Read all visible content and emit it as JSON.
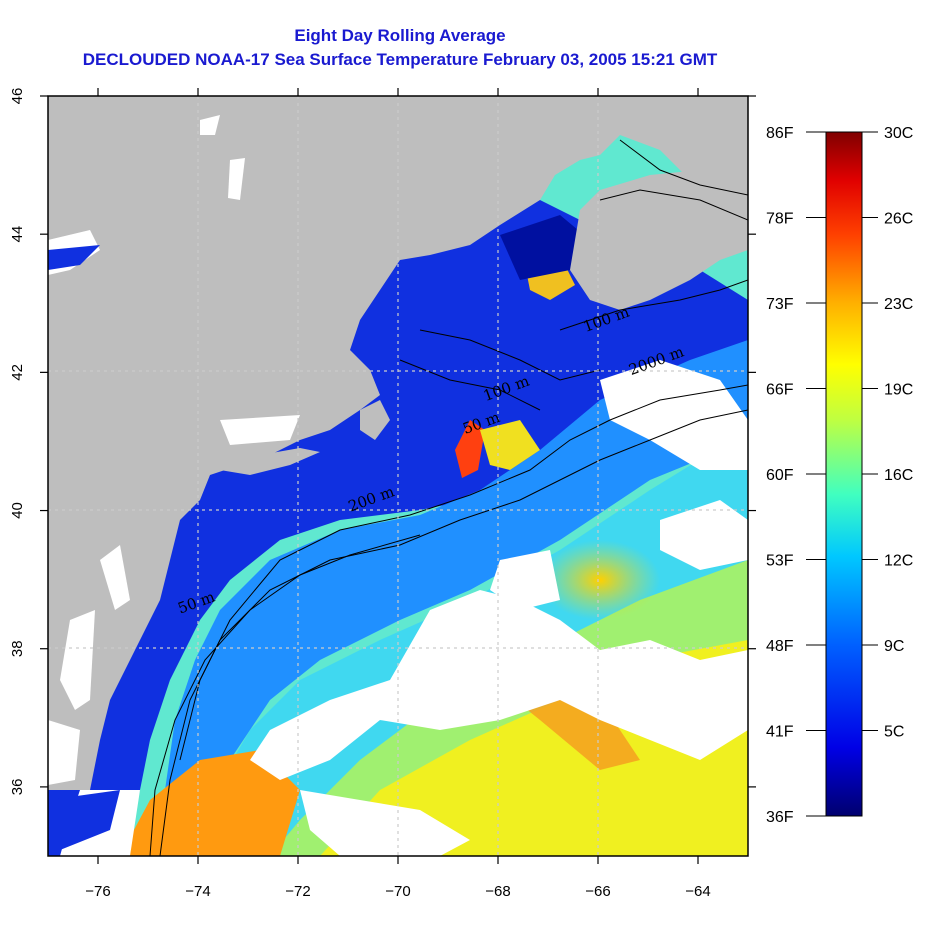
{
  "title": {
    "line1": "Eight Day Rolling Average",
    "line2": "DECLOUDED NOAA-17 Sea Surface Temperature February 03, 2005 15:21 GMT"
  },
  "map": {
    "longitude_range": [
      -77,
      -63
    ],
    "latitude_range": [
      35,
      46
    ],
    "x_ticks": [
      -76,
      -74,
      -72,
      -70,
      -68,
      -66,
      -64
    ],
    "x_tick_labels": [
      "−76",
      "−74",
      "−72",
      "−70",
      "−68",
      "−66",
      "−64"
    ],
    "y_ticks": [
      36,
      38,
      40,
      42,
      44,
      46
    ],
    "y_tick_labels": [
      "36",
      "38",
      "40",
      "42",
      "44",
      "46"
    ],
    "grid": true,
    "land_color": "#bebebe",
    "cloud_color": "#ffffff",
    "contour_labels": [
      {
        "text": "50 m",
        "lon": -74.0,
        "lat": 38.6
      },
      {
        "text": "100 m",
        "lon": -67.8,
        "lat": 41.7
      },
      {
        "text": "200 m",
        "lon": -70.5,
        "lat": 40.1
      },
      {
        "text": "100 m",
        "lon": -65.8,
        "lat": 42.7
      },
      {
        "text": "2000 m",
        "lon": -64.8,
        "lat": 42.1
      },
      {
        "text": "50 m",
        "lon": -68.3,
        "lat": 41.2
      }
    ]
  },
  "colorbar": {
    "fahrenheit_labels": [
      "86F",
      "78F",
      "73F",
      "66F",
      "60F",
      "53F",
      "48F",
      "41F",
      "36F"
    ],
    "celsius_labels": [
      "30C",
      "26C",
      "23C",
      "19C",
      "16C",
      "12C",
      "9C",
      "5C"
    ],
    "colors": [
      "#000080",
      "#0000ff",
      "#0080ff",
      "#00ffff",
      "#80ff80",
      "#ffff00",
      "#ff8000",
      "#ff0000",
      "#800000"
    ]
  }
}
